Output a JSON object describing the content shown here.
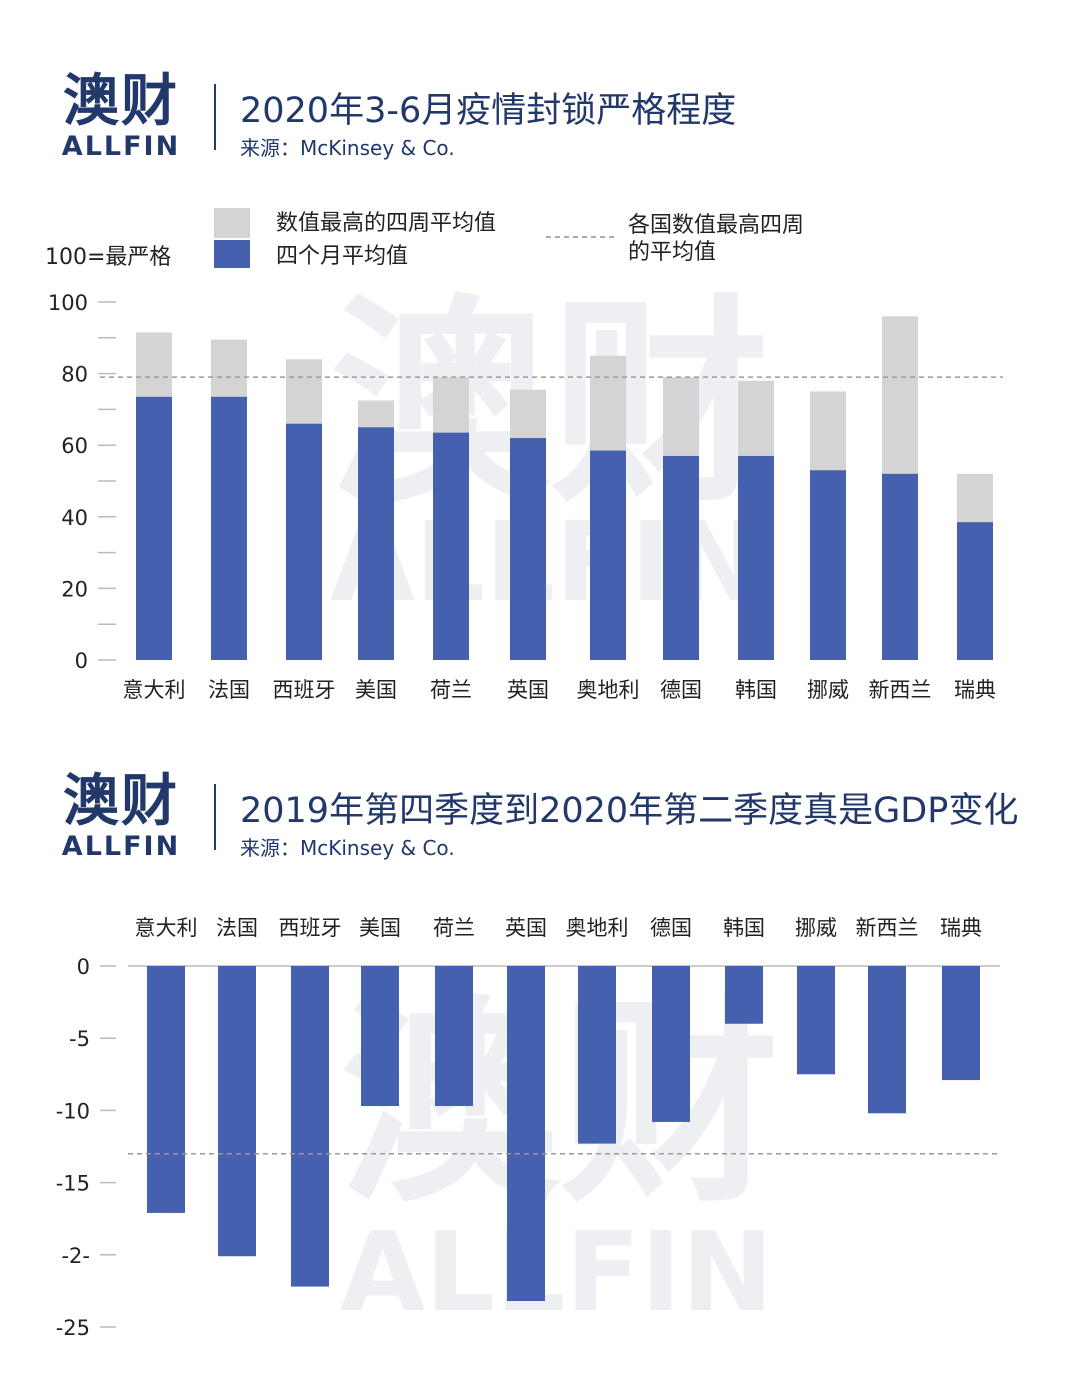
{
  "brand": {
    "name_cn": "澳财",
    "name_en": "ALLFIN",
    "accent": "#22386b",
    "accent_red": "#d6334a"
  },
  "charts": [
    {
      "title": "2020年3-6月疫情封锁严格程度",
      "source": "来源：McKinsey & Co."
    },
    {
      "title": "2019年第四季度到2020年第二季度真是GDP变化",
      "source": "来源：McKinsey & Co."
    }
  ],
  "chart_data": [
    {
      "type": "bar",
      "stacked_overlay": true,
      "ylabel": "100=最严格",
      "ylim": [
        0,
        100
      ],
      "yticks": [
        "100",
        "80",
        "60",
        "40",
        "20",
        "0"
      ],
      "categories": [
        "意大利",
        "法国",
        "西班牙",
        "美国",
        "荷兰",
        "英国",
        "奥地利",
        "德国",
        "韩国",
        "挪威",
        "新西兰",
        "瑞典"
      ],
      "series": [
        {
          "name": "数值最高的四周平均值",
          "color": "#d4d4d4",
          "values": [
            91.5,
            89.5,
            84,
            72.5,
            79,
            75.5,
            85,
            79,
            78,
            75,
            96,
            52
          ]
        },
        {
          "name": "四个月平均值",
          "color": "#4560ae",
          "values": [
            73.5,
            73.5,
            66,
            65,
            63.5,
            62,
            58.5,
            57,
            57,
            53,
            52,
            38.5
          ]
        }
      ],
      "reference_line": {
        "name": "各国数值最高四周的平均值",
        "value": 79,
        "line1": "各国数值最高四周",
        "line2": "的平均值"
      },
      "grid": false
    },
    {
      "type": "bar",
      "ylim": [
        -25,
        0
      ],
      "yticks": [
        "0",
        "-5",
        "-10",
        "-15",
        "-2-",
        "-25"
      ],
      "categories": [
        "意大利",
        "法国",
        "西班牙",
        "美国",
        "荷兰",
        "英国",
        "奥地利",
        "德国",
        "韩国",
        "挪威",
        "新西兰",
        "瑞典"
      ],
      "series": [
        {
          "color": "#4560ae",
          "values": [
            -17.1,
            -20.1,
            -22.2,
            -9.7,
            -9.7,
            -23.2,
            -12.3,
            -10.8,
            -4,
            -7.5,
            -10.2,
            -7.9
          ]
        }
      ],
      "reference_line": {
        "value": -13
      },
      "grid": false
    }
  ]
}
